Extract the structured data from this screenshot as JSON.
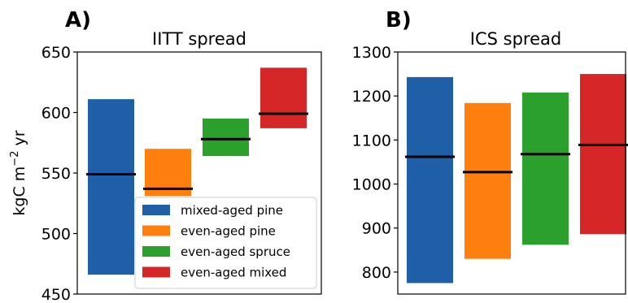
{
  "chart_data": [
    {
      "type": "bar",
      "panel_label": "A)",
      "title": "IITT spread",
      "ylabel_main": "kgC m",
      "ylabel_sup": "−2",
      "ylabel_tail": " yr",
      "ylim": [
        450,
        650
      ],
      "yticks": [
        "450",
        "500",
        "550",
        "600",
        "650"
      ],
      "grid": false,
      "series": [
        {
          "name": "mixed-aged pine",
          "color": "#1f5fa8",
          "low": 466,
          "high": 611,
          "median": 549
        },
        {
          "name": "even-aged pine",
          "color": "#ff7f0e",
          "low": 531,
          "high": 570,
          "median": 537
        },
        {
          "name": "even-aged spruce",
          "color": "#2ca02c",
          "low": 564,
          "high": 595,
          "median": 578
        },
        {
          "name": "even-aged mixed",
          "color": "#d62728",
          "low": 587,
          "high": 637,
          "median": 599
        }
      ],
      "legend_placement": "lower-right"
    },
    {
      "type": "bar",
      "panel_label": "B)",
      "title": "ICS spread",
      "ylim": [
        750,
        1300
      ],
      "yticks": [
        "800",
        "900",
        "1000",
        "1100",
        "1200",
        "1300"
      ],
      "grid": false,
      "series": [
        {
          "name": "mixed-aged pine",
          "color": "#1f5fa8",
          "low": 775,
          "high": 1243,
          "median": 1062
        },
        {
          "name": "even-aged pine",
          "color": "#ff7f0e",
          "low": 830,
          "high": 1184,
          "median": 1027
        },
        {
          "name": "even-aged spruce",
          "color": "#2ca02c",
          "low": 862,
          "high": 1208,
          "median": 1068
        },
        {
          "name": "even-aged mixed",
          "color": "#d62728",
          "low": 886,
          "high": 1250,
          "median": 1089
        }
      ]
    }
  ]
}
